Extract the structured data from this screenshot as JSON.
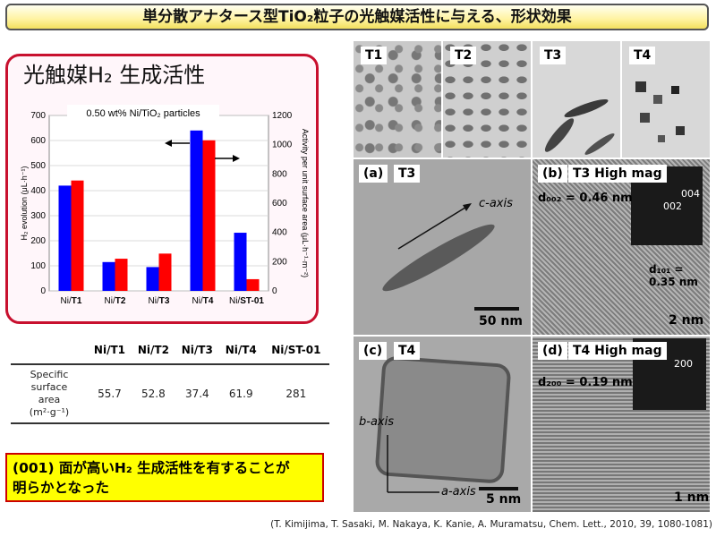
{
  "title": "単分散アナタース型TiO₂粒子の光触媒活性に与える、形状効果",
  "panel_title": "光触媒H₂ 生成活性",
  "chart_data": {
    "type": "bar",
    "subtitle": "0.50 wt% Ni/TiO₂ particles",
    "categories": [
      "Ni/T1",
      "Ni/T2",
      "Ni/T3",
      "Ni/T4",
      "Ni/ST-01"
    ],
    "series": [
      {
        "name": "H₂ evolution (μL·h⁻¹)",
        "axis": "left",
        "color": "#0000ff",
        "values": [
          420,
          115,
          95,
          640,
          232
        ]
      },
      {
        "name": "Activity per unit surface area (μL·h⁻¹·m⁻²)",
        "axis": "right",
        "color": "#ff0000",
        "values": [
          755,
          220,
          255,
          1030,
          80
        ]
      }
    ],
    "ylabel": "H₂ evolution (μL·h⁻¹)",
    "y2label": "Activity per unit surface area (μL·h⁻¹·m⁻²)",
    "ylim": [
      0,
      700
    ],
    "y2lim": [
      0,
      1200
    ],
    "yticks": [
      "0",
      "100",
      "200",
      "300",
      "400",
      "500",
      "600",
      "700"
    ],
    "y2ticks": [
      "0",
      "200",
      "400",
      "600",
      "800",
      "1000",
      "1200"
    ],
    "grid": true
  },
  "table": {
    "headers": [
      "",
      "Ni/T1",
      "Ni/T2",
      "Ni/T3",
      "Ni/T4",
      "Ni/ST-01"
    ],
    "row_label": [
      "Specific",
      "surface",
      "area",
      "(m²·g⁻¹)"
    ],
    "values": [
      "55.7",
      "52.8",
      "37.4",
      "61.9",
      "281"
    ]
  },
  "conclusion": [
    "(001) 面が高いH₂ 生成活性を有することが",
    "明らかとなった"
  ],
  "images": {
    "top": [
      "T1",
      "T2",
      "T3",
      "T4"
    ],
    "a": {
      "letter": "(a)",
      "label": "T3",
      "axis": "c-axis",
      "scale": "50 nm"
    },
    "b": {
      "letter": "(b)",
      "label": "T3 High mag",
      "d1": "d₀₀₂ = 0.46 nm",
      "d2": "d₁₀₁ = 0.35 nm",
      "fft1": "004",
      "fft2": "002",
      "fft3": "00",
      "scale": "2 nm"
    },
    "c": {
      "letter": "(c)",
      "label": "T4",
      "axis1": "b-axis",
      "axis2": "a-axis",
      "scale": "5 nm"
    },
    "d": {
      "letter": "(d)",
      "label": "T4 High mag",
      "d1": "d₂₀₀ = 0.19 nm",
      "fft1": "020",
      "fft2": "200",
      "scale": "1 nm"
    }
  },
  "citation": "(T. Kimijima, T. Sasaki, M. Nakaya, K. Kanie, A. Muramatsu, Chem. Lett., 2010, 39, 1080-1081)"
}
